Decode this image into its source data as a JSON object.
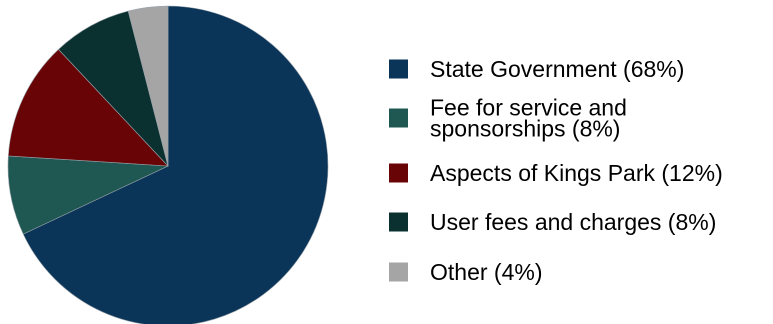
{
  "chart_data": {
    "type": "pie",
    "title": "",
    "start": "top",
    "direction": "clockwise",
    "legend_position": "right",
    "slices": [
      {
        "label": "State Government (68%)",
        "label_lines": [
          "State Government (68%)"
        ],
        "value": 68,
        "color": "#0a3558"
      },
      {
        "label": "Fee for service and sponsorships (8%)",
        "label_lines": [
          "Fee for service and",
          "sponsorships (8%)"
        ],
        "value": 8,
        "color": "#1f5853"
      },
      {
        "label": "Aspects of Kings Park (12%)",
        "label_lines": [
          "Aspects of Kings Park (12%)"
        ],
        "value": 12,
        "color": "#680405"
      },
      {
        "label": "User fees and charges (8%)",
        "label_lines": [
          "User fees and charges (8%)"
        ],
        "value": 8,
        "color": "#0a3130"
      },
      {
        "label": "Other (4%)",
        "label_lines": [
          "Other (4%)"
        ],
        "value": 4,
        "color": "#a5a5a5"
      }
    ]
  }
}
